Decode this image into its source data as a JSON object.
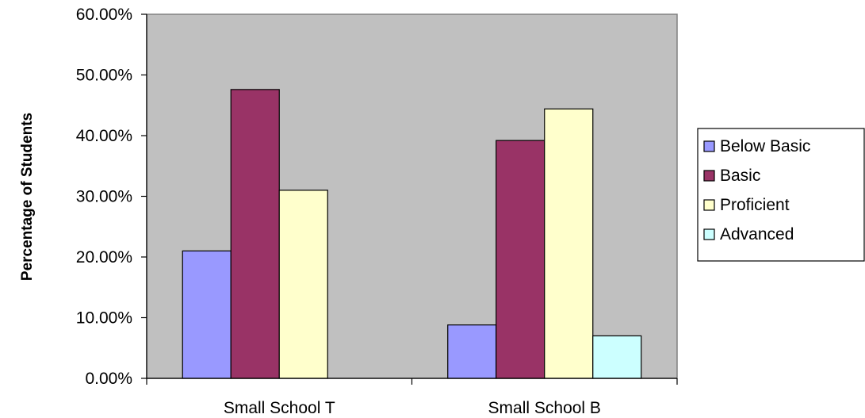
{
  "chart_data": {
    "type": "bar",
    "title": "",
    "xlabel": "",
    "ylabel": "Percentage of Students",
    "categories": [
      "Small School T",
      "Small School B"
    ],
    "series": [
      {
        "name": "Below Basic",
        "values": [
          21.0,
          8.8
        ],
        "color": "#9999ff"
      },
      {
        "name": "Basic",
        "values": [
          47.6,
          39.2
        ],
        "color": "#993366"
      },
      {
        "name": "Proficient",
        "values": [
          31.0,
          44.4
        ],
        "color": "#ffffcc"
      },
      {
        "name": "Advanced",
        "values": [
          0,
          7.0
        ],
        "color": "#ccffff"
      }
    ],
    "ylim": [
      0,
      60
    ],
    "yticks": [
      "0.00%",
      "10.00%",
      "20.00%",
      "30.00%",
      "40.00%",
      "50.00%",
      "60.00%"
    ],
    "grid": false,
    "plot_background": "#c0c0c0",
    "legend_position": "right"
  }
}
